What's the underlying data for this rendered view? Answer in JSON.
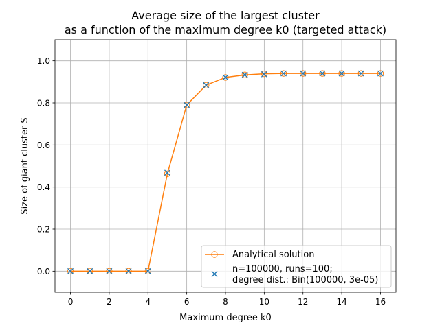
{
  "chart_data": {
    "type": "line",
    "title": [
      "Average size of the largest cluster",
      "as a function of the maximum degree k0 (targeted attack)"
    ],
    "xlabel": "Maximum degree k0",
    "ylabel": "Size of giant cluster S",
    "xlim": [
      -0.8,
      16.8
    ],
    "ylim": [
      -0.1,
      1.1
    ],
    "x_ticks": [
      0,
      2,
      4,
      6,
      8,
      10,
      12,
      14,
      16
    ],
    "y_ticks": [
      0.0,
      0.2,
      0.4,
      0.6,
      0.8,
      1.0
    ],
    "x_tick_labels": [
      "0",
      "2",
      "4",
      "6",
      "8",
      "10",
      "12",
      "14",
      "16"
    ],
    "y_tick_labels": [
      "0.0",
      "0.2",
      "0.4",
      "0.6",
      "0.8",
      "1.0"
    ],
    "grid": true,
    "legend_position": "lower right",
    "series": [
      {
        "name": "Analytical solution",
        "style": "line with hollow circle markers",
        "color": "#ff7f0e",
        "x": [
          0,
          1,
          2,
          3,
          4,
          5,
          6,
          7,
          8,
          9,
          10,
          11,
          12,
          13,
          14,
          15,
          16
        ],
        "y": [
          0.0,
          0.0,
          0.0,
          0.0,
          0.0,
          0.463,
          0.79,
          0.884,
          0.921,
          0.933,
          0.938,
          0.94,
          0.94,
          0.94,
          0.94,
          0.94,
          0.94
        ]
      },
      {
        "name": "n=100000, runs=100;\ndegree dist.: Bin(100000, 3e-05)",
        "legend_lines": [
          "n=100000, runs=100;",
          "degree dist.: Bin(100000, 3e-05)"
        ],
        "style": "x markers",
        "color": "#1f77b4",
        "x": [
          0,
          1,
          2,
          3,
          4,
          5,
          6,
          7,
          8,
          9,
          10,
          11,
          12,
          13,
          14,
          15,
          16
        ],
        "y": [
          0.0,
          0.0,
          0.0,
          0.0,
          0.0,
          0.468,
          0.79,
          0.884,
          0.921,
          0.933,
          0.936,
          0.94,
          0.94,
          0.94,
          0.94,
          0.94,
          0.94
        ]
      }
    ]
  }
}
